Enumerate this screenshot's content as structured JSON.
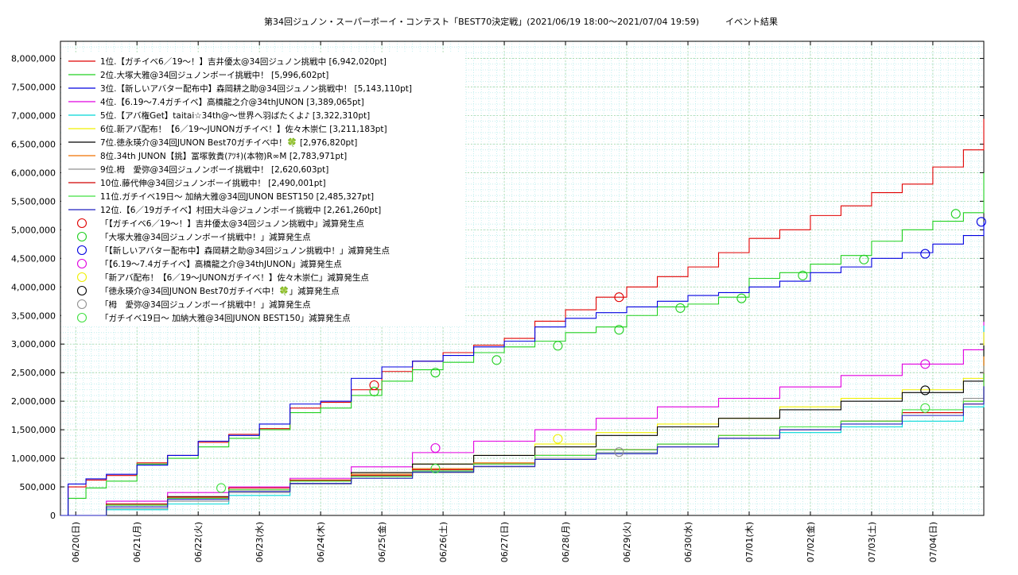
{
  "chart_data": {
    "type": "line",
    "title": "第34回ジュノン・スーパーボーイ・コンテスト「BEST70決定戦」(2021/06/19 18:00～2021/07/04 19:59)　　　イベント結果",
    "xlabel": "",
    "ylabel": "",
    "xlim": [
      "2021-06-19 18:00",
      "2021-07-04 19:59"
    ],
    "ylim": [
      0,
      8300000
    ],
    "grid": true,
    "legend_position": "top-left",
    "x_tick_labels": [
      "06/20(日)",
      "06/21(月)",
      "06/22(火)",
      "06/23(水)",
      "06/24(木)",
      "06/25(金)",
      "06/26(土)",
      "06/27(日)",
      "06/28(月)",
      "06/29(火)",
      "06/30(水)",
      "07/01(木)",
      "07/02(金)",
      "07/03(土)",
      "07/04(日)"
    ],
    "y_ticks": [
      0,
      500000,
      1000000,
      1500000,
      2000000,
      2500000,
      3000000,
      3500000,
      4000000,
      4500000,
      5000000,
      5500000,
      6000000,
      6500000,
      7000000,
      7500000,
      8000000
    ],
    "y_tick_labels": [
      "0",
      "500,000",
      "1,000,000",
      "1,500,000",
      "2,000,000",
      "2,500,000",
      "3,000,000",
      "3,500,000",
      "4,000,000",
      "4,500,000",
      "5,000,000",
      "5,500,000",
      "6,000,000",
      "6,500,000",
      "7,000,000",
      "7,500,000",
      "8,000,000"
    ],
    "series": [
      {
        "name": "1位.【ガチイベ6／19〜！】吉井優太@34回ジュノン挑戦中 [6,942,020pt]",
        "color": "#e00000",
        "x": [
          "2021-06-19 18:00",
          "2021-06-19 21:00",
          "2021-06-20 04:00",
          "2021-06-20 12:00",
          "2021-06-21 00:00",
          "2021-06-21 12:00",
          "2021-06-22 00:00",
          "2021-06-22 12:00",
          "2021-06-23 00:00",
          "2021-06-23 12:00",
          "2021-06-24 00:00",
          "2021-06-24 12:00",
          "2021-06-25 00:00",
          "2021-06-25 12:00",
          "2021-06-26 00:00",
          "2021-06-26 12:00",
          "2021-06-27 00:00",
          "2021-06-27 12:00",
          "2021-06-28 00:00",
          "2021-06-28 12:00",
          "2021-06-29 00:00",
          "2021-06-29 12:00",
          "2021-06-30 00:00",
          "2021-06-30 12:00",
          "2021-07-01 00:00",
          "2021-07-01 12:00",
          "2021-07-02 00:00",
          "2021-07-02 12:00",
          "2021-07-03 00:00",
          "2021-07-03 12:00",
          "2021-07-04 00:00",
          "2021-07-04 12:00",
          "2021-07-04 19:59"
        ],
        "values": [
          0,
          500000,
          620000,
          700000,
          920000,
          1050000,
          1280000,
          1420000,
          1520000,
          1880000,
          1980000,
          2200000,
          2520000,
          2700000,
          2850000,
          2980000,
          3100000,
          3400000,
          3600000,
          3820000,
          4000000,
          4180000,
          4350000,
          4600000,
          4850000,
          5000000,
          5250000,
          5420000,
          5650000,
          5800000,
          6100000,
          6400000,
          6942020
        ]
      },
      {
        "name": "2位.大塚大雅@34回ジュノンボーイ挑戦中！ [5,996,602pt]",
        "color": "#20d020",
        "x": [
          "2021-06-19 18:00",
          "2021-06-19 21:00",
          "2021-06-20 04:00",
          "2021-06-20 12:00",
          "2021-06-21 00:00",
          "2021-06-21 12:00",
          "2021-06-22 00:00",
          "2021-06-22 12:00",
          "2021-06-23 00:00",
          "2021-06-23 12:00",
          "2021-06-24 00:00",
          "2021-06-24 12:00",
          "2021-06-25 00:00",
          "2021-06-25 12:00",
          "2021-06-26 00:00",
          "2021-06-26 12:00",
          "2021-06-27 00:00",
          "2021-06-27 12:00",
          "2021-06-28 00:00",
          "2021-06-28 12:00",
          "2021-06-29 00:00",
          "2021-06-29 12:00",
          "2021-06-30 00:00",
          "2021-06-30 12:00",
          "2021-07-01 00:00",
          "2021-07-01 12:00",
          "2021-07-02 00:00",
          "2021-07-02 12:00",
          "2021-07-03 00:00",
          "2021-07-03 12:00",
          "2021-07-04 00:00",
          "2021-07-04 12:00",
          "2021-07-04 19:59"
        ],
        "values": [
          0,
          300000,
          480000,
          600000,
          900000,
          1000000,
          1200000,
          1350000,
          1500000,
          1800000,
          1880000,
          2100000,
          2350000,
          2550000,
          2680000,
          2850000,
          2950000,
          3050000,
          3200000,
          3300000,
          3500000,
          3650000,
          3700000,
          3820000,
          4150000,
          4250000,
          4400000,
          4550000,
          4800000,
          5000000,
          5150000,
          5300000,
          5996602
        ]
      },
      {
        "name": "3位.【新しいアバター配布中】森岡耕之助@34回ジュノン挑戦中！ [5,143,110pt]",
        "color": "#0000e0",
        "x": [
          "2021-06-19 18:00",
          "2021-06-19 21:00",
          "2021-06-20 04:00",
          "2021-06-20 12:00",
          "2021-06-21 00:00",
          "2021-06-21 12:00",
          "2021-06-22 00:00",
          "2021-06-22 12:00",
          "2021-06-23 00:00",
          "2021-06-23 12:00",
          "2021-06-24 00:00",
          "2021-06-24 12:00",
          "2021-06-25 00:00",
          "2021-06-25 12:00",
          "2021-06-26 00:00",
          "2021-06-26 12:00",
          "2021-06-27 00:00",
          "2021-06-27 12:00",
          "2021-06-28 00:00",
          "2021-06-28 12:00",
          "2021-06-29 00:00",
          "2021-06-29 12:00",
          "2021-06-30 00:00",
          "2021-06-30 12:00",
          "2021-07-01 00:00",
          "2021-07-01 12:00",
          "2021-07-02 00:00",
          "2021-07-02 12:00",
          "2021-07-03 00:00",
          "2021-07-03 12:00",
          "2021-07-04 00:00",
          "2021-07-04 12:00",
          "2021-07-04 19:59"
        ],
        "values": [
          0,
          550000,
          640000,
          720000,
          880000,
          1050000,
          1300000,
          1400000,
          1600000,
          1950000,
          2000000,
          2400000,
          2600000,
          2700000,
          2800000,
          2950000,
          3050000,
          3300000,
          3450000,
          3550000,
          3650000,
          3750000,
          3850000,
          3900000,
          4000000,
          4100000,
          4250000,
          4350000,
          4500000,
          4600000,
          4750000,
          4900000,
          5143110
        ]
      },
      {
        "name": "4位.【6.19〜7.4ガチイベ】高橋龍之介@34thJUNON [3,389,065pt]",
        "color": "#e000e0",
        "x": [
          "2021-06-19 18:00",
          "2021-06-20 12:00",
          "2021-06-21 12:00",
          "2021-06-22 12:00",
          "2021-06-23 12:00",
          "2021-06-24 12:00",
          "2021-06-25 12:00",
          "2021-06-26 12:00",
          "2021-06-27 12:00",
          "2021-06-28 12:00",
          "2021-06-29 12:00",
          "2021-06-30 12:00",
          "2021-07-01 12:00",
          "2021-07-02 12:00",
          "2021-07-03 12:00",
          "2021-07-04 12:00",
          "2021-07-04 19:59"
        ],
        "values": [
          0,
          250000,
          400000,
          500000,
          650000,
          850000,
          1100000,
          1300000,
          1500000,
          1700000,
          1900000,
          2050000,
          2250000,
          2450000,
          2650000,
          2900000,
          3389065
        ]
      },
      {
        "name": "5位.【アバ権Get】taitai☆34th@〜世界へ羽ばたくよ♪ [3,322,310pt]",
        "color": "#00d8d8",
        "x": [
          "2021-06-19 18:00",
          "2021-06-20 12:00",
          "2021-06-21 12:00",
          "2021-06-22 12:00",
          "2021-06-23 12:00",
          "2021-06-24 12:00",
          "2021-06-25 12:00",
          "2021-06-26 12:00",
          "2021-06-27 12:00",
          "2021-06-28 12:00",
          "2021-06-29 12:00",
          "2021-06-30 12:00",
          "2021-07-01 12:00",
          "2021-07-02 12:00",
          "2021-07-03 12:00",
          "2021-07-04 12:00",
          "2021-07-04 19:59"
        ],
        "values": [
          0,
          100000,
          200000,
          350000,
          550000,
          700000,
          800000,
          900000,
          1000000,
          1100000,
          1250000,
          1350000,
          1450000,
          1550000,
          1650000,
          1900000,
          3322310
        ]
      },
      {
        "name": "6位.新アバ配布！【6／19〜JUNONガチイベ！】佐々木崇仁 [3,211,183pt]",
        "color": "#f0f000",
        "x": [
          "2021-06-19 18:00",
          "2021-06-20 12:00",
          "2021-06-21 12:00",
          "2021-06-22 12:00",
          "2021-06-23 12:00",
          "2021-06-24 12:00",
          "2021-06-25 12:00",
          "2021-06-26 12:00",
          "2021-06-27 12:00",
          "2021-06-28 12:00",
          "2021-06-29 12:00",
          "2021-06-30 12:00",
          "2021-07-01 12:00",
          "2021-07-02 12:00",
          "2021-07-03 12:00",
          "2021-07-04 12:00",
          "2021-07-04 19:59"
        ],
        "values": [
          0,
          200000,
          300000,
          450000,
          600000,
          750000,
          900000,
          1050000,
          1250000,
          1450000,
          1600000,
          1700000,
          1900000,
          2050000,
          2200000,
          2400000,
          3211183
        ]
      },
      {
        "name": "7位.徳永瑛介@34回JUNON Best70ガチイベ中！🍀 [2,976,820pt]",
        "color": "#000000",
        "x": [
          "2021-06-19 18:00",
          "2021-06-20 12:00",
          "2021-06-21 12:00",
          "2021-06-22 12:00",
          "2021-06-23 12:00",
          "2021-06-24 12:00",
          "2021-06-25 12:00",
          "2021-06-26 12:00",
          "2021-06-27 12:00",
          "2021-06-28 12:00",
          "2021-06-29 12:00",
          "2021-06-30 12:00",
          "2021-07-01 12:00",
          "2021-07-02 12:00",
          "2021-07-03 12:00",
          "2021-07-04 12:00",
          "2021-07-04 19:59"
        ],
        "values": [
          0,
          200000,
          330000,
          450000,
          600000,
          750000,
          900000,
          1050000,
          1200000,
          1400000,
          1550000,
          1700000,
          1850000,
          2000000,
          2150000,
          2350000,
          2976820
        ]
      },
      {
        "name": "8位.34th JUNON【挑】冨塚敦貴(ｱﾂｷ)(本物)R∞M [2,783,971pt]",
        "color": "#f07000",
        "x": [
          "2021-06-19 18:00",
          "2021-06-20 12:00",
          "2021-06-21 12:00",
          "2021-06-22 12:00",
          "2021-06-23 12:00",
          "2021-06-24 12:00",
          "2021-06-25 12:00",
          "2021-06-26 12:00",
          "2021-06-27 12:00",
          "2021-06-28 12:00",
          "2021-06-29 12:00",
          "2021-06-30 12:00",
          "2021-07-01 12:00",
          "2021-07-02 12:00",
          "2021-07-03 12:00",
          "2021-07-04 12:00",
          "2021-07-04 19:59"
        ],
        "values": [
          0,
          180000,
          300000,
          450000,
          600000,
          720000,
          820000,
          920000,
          1050000,
          1150000,
          1250000,
          1400000,
          1500000,
          1650000,
          1800000,
          2000000,
          2783971
        ]
      },
      {
        "name": "9位.栂　愛弥@34回ジュノンボーイ挑戦中！ [2,620,603pt]",
        "color": "#909090",
        "x": [
          "2021-06-19 18:00",
          "2021-06-20 12:00",
          "2021-06-21 12:00",
          "2021-06-22 12:00",
          "2021-06-23 12:00",
          "2021-06-24 12:00",
          "2021-06-25 12:00",
          "2021-06-26 12:00",
          "2021-06-27 12:00",
          "2021-06-28 12:00",
          "2021-06-29 12:00",
          "2021-06-30 12:00",
          "2021-07-01 12:00",
          "2021-07-02 12:00",
          "2021-07-03 12:00",
          "2021-07-04 12:00",
          "2021-07-04 19:59"
        ],
        "values": [
          0,
          120000,
          250000,
          400000,
          550000,
          650000,
          750000,
          850000,
          1000000,
          1100000,
          1200000,
          1350000,
          1500000,
          1650000,
          1800000,
          2050000,
          2620603
        ]
      },
      {
        "name": "10位.藤代伸@34回ジュノンボーイ挑戦中！ [2,490,001pt]",
        "color": "#d00000",
        "x": [
          "2021-06-19 18:00",
          "2021-06-20 12:00",
          "2021-06-21 12:00",
          "2021-06-22 12:00",
          "2021-06-23 12:00",
          "2021-06-24 12:00",
          "2021-06-25 12:00",
          "2021-06-26 12:00",
          "2021-06-27 12:00",
          "2021-06-28 12:00",
          "2021-06-29 12:00",
          "2021-06-30 12:00",
          "2021-07-01 12:00",
          "2021-07-02 12:00",
          "2021-07-03 12:00",
          "2021-07-04 12:00",
          "2021-07-04 19:59"
        ],
        "values": [
          0,
          200000,
          320000,
          480000,
          620000,
          700000,
          800000,
          900000,
          1050000,
          1150000,
          1250000,
          1350000,
          1500000,
          1650000,
          1800000,
          1950000,
          2490001
        ]
      },
      {
        "name": "11位.ガチイベ19日〜 加納大雅@34回JUNON BEST150 [2,485,327pt]",
        "color": "#40e040",
        "x": [
          "2021-06-19 18:00",
          "2021-06-20 12:00",
          "2021-06-21 12:00",
          "2021-06-22 12:00",
          "2021-06-23 12:00",
          "2021-06-24 12:00",
          "2021-06-25 12:00",
          "2021-06-26 12:00",
          "2021-06-27 12:00",
          "2021-06-28 12:00",
          "2021-06-29 12:00",
          "2021-06-30 12:00",
          "2021-07-01 12:00",
          "2021-07-02 12:00",
          "2021-07-03 12:00",
          "2021-07-04 12:00",
          "2021-07-04 19:59"
        ],
        "values": [
          0,
          180000,
          300000,
          450000,
          600000,
          680000,
          780000,
          900000,
          1050000,
          1150000,
          1250000,
          1400000,
          1550000,
          1650000,
          1850000,
          2000000,
          2485327
        ]
      },
      {
        "name": "12位.【6／19ガチイベ】村田大斗@ジュノンボーイ挑戦中 [2,261,260pt]",
        "color": "#2020c0",
        "x": [
          "2021-06-19 18:00",
          "2021-06-20 12:00",
          "2021-06-21 12:00",
          "2021-06-22 12:00",
          "2021-06-23 12:00",
          "2021-06-24 12:00",
          "2021-06-25 12:00",
          "2021-06-26 12:00",
          "2021-06-27 12:00",
          "2021-06-28 12:00",
          "2021-06-29 12:00",
          "2021-06-30 12:00",
          "2021-07-01 12:00",
          "2021-07-02 12:00",
          "2021-07-03 12:00",
          "2021-07-04 12:00",
          "2021-07-04 19:59"
        ],
        "values": [
          0,
          150000,
          280000,
          420000,
          560000,
          650000,
          760000,
          860000,
          980000,
          1080000,
          1200000,
          1350000,
          1500000,
          1600000,
          1750000,
          1950000,
          2261260
        ]
      }
    ],
    "markers": [
      {
        "name": "「【ガチイベ6／19〜！】吉井優太@34回ジュノン挑戦中」減算発生点",
        "color": "#e00000",
        "points": [
          {
            "x": "2021-06-24 21:00",
            "y": 2280000
          },
          {
            "x": "2021-06-28 21:00",
            "y": 3820000
          }
        ]
      },
      {
        "name": "「大塚大雅@34回ジュノンボーイ挑戦中！」減算発生点",
        "color": "#20d020",
        "points": [
          {
            "x": "2021-06-24 21:00",
            "y": 2170000
          },
          {
            "x": "2021-06-25 21:00",
            "y": 2500000
          },
          {
            "x": "2021-06-26 21:00",
            "y": 2720000
          },
          {
            "x": "2021-06-27 21:00",
            "y": 2970000
          },
          {
            "x": "2021-06-28 21:00",
            "y": 3250000
          },
          {
            "x": "2021-06-29 21:00",
            "y": 3630000
          },
          {
            "x": "2021-06-30 21:00",
            "y": 3800000
          },
          {
            "x": "2021-07-01 21:00",
            "y": 4200000
          },
          {
            "x": "2021-07-02 21:00",
            "y": 4480000
          },
          {
            "x": "2021-07-04 09:00",
            "y": 5280000
          }
        ]
      },
      {
        "name": "「【新しいアバター配布中】森岡耕之助@34回ジュノン挑戦中！」減算発生点",
        "color": "#0000e0",
        "points": [
          {
            "x": "2021-07-03 21:00",
            "y": 4580000
          },
          {
            "x": "2021-07-04 19:00",
            "y": 5140000
          }
        ]
      },
      {
        "name": "「【6.19〜7.4ガチイベ】高橋龍之介@34thJUNON」減算発生点",
        "color": "#e000e0",
        "points": [
          {
            "x": "2021-06-25 21:00",
            "y": 1180000
          },
          {
            "x": "2021-07-03 21:00",
            "y": 2650000
          }
        ]
      },
      {
        "name": "「新アバ配布！【6／19〜JUNONガチイベ！】佐々木崇仁」減算発生点",
        "color": "#f0f000",
        "points": [
          {
            "x": "2021-06-27 21:00",
            "y": 1340000
          }
        ]
      },
      {
        "name": "「徳永瑛介@34回JUNON Best70ガチイベ中！🍀」減算発生点",
        "color": "#000000",
        "points": [
          {
            "x": "2021-07-03 21:00",
            "y": 2190000
          }
        ]
      },
      {
        "name": "「栂　愛弥@34回ジュノンボーイ挑戦中！」減算発生点",
        "color": "#909090",
        "points": [
          {
            "x": "2021-06-28 21:00",
            "y": 1110000
          }
        ]
      },
      {
        "name": "「ガチイベ19日〜 加納大雅@34回JUNON BEST150」減算発生点",
        "color": "#40e040",
        "points": [
          {
            "x": "2021-06-22 09:00",
            "y": 480000
          },
          {
            "x": "2021-06-25 21:00",
            "y": 820000
          },
          {
            "x": "2021-07-03 21:00",
            "y": 1880000
          }
        ]
      }
    ]
  }
}
